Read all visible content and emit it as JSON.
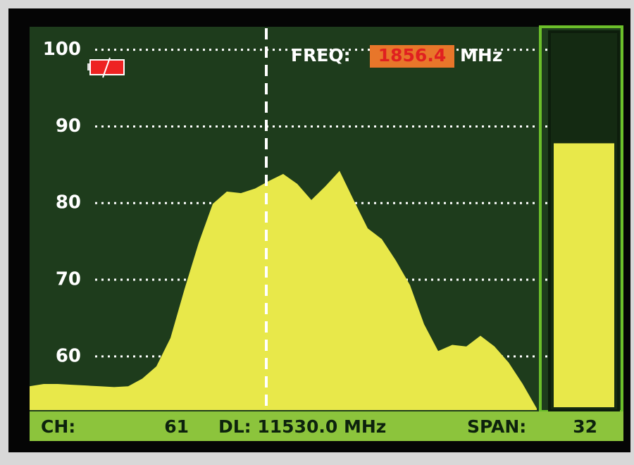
{
  "chart_data": {
    "type": "area",
    "ylim": [
      53,
      103
    ],
    "yticks": [
      60,
      70,
      80,
      90,
      100
    ],
    "values": [
      56.1,
      56.4,
      56.4,
      56.3,
      56.2,
      56.1,
      56.0,
      56.1,
      57.1,
      58.7,
      62.4,
      68.8,
      74.8,
      79.9,
      81.5,
      81.3,
      81.9,
      82.9,
      83.8,
      82.5,
      80.4,
      82.2,
      84.2,
      80.4,
      76.7,
      75.3,
      72.5,
      69.3,
      64.2,
      60.7,
      61.5,
      61.3,
      62.7,
      61.3,
      59.2,
      56.4,
      53.2
    ],
    "color": "#e8e84a",
    "grid": true,
    "level": 87.8,
    "freq_label": "FREQ:",
    "freq_value": 1856.4,
    "freq_unit": "MHz",
    "status": {
      "ch_label": "CH:",
      "ch_value": 61,
      "dl": "DL: 11530.0 MHz",
      "span_label": "SPAN:",
      "span_value": 32
    }
  }
}
